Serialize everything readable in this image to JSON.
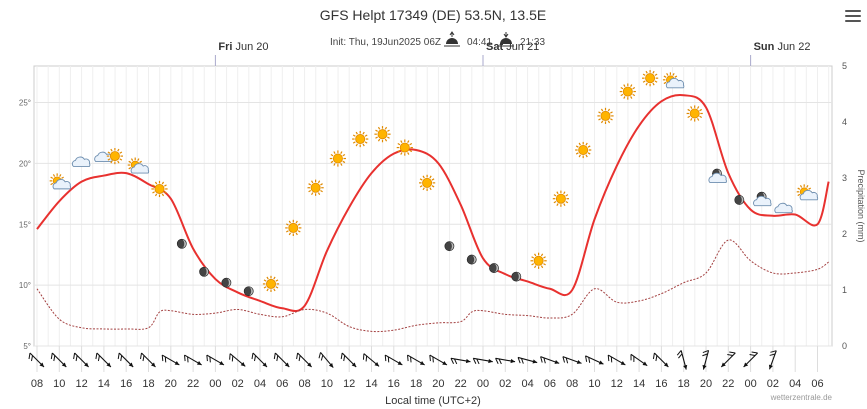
{
  "header": {
    "title": "GFS Helpt 17349 (DE) 53.5N, 13.5E",
    "init": "Init: Thu, 19Jun2025 06Z",
    "sunrise": "04:41",
    "sunset": "21:33"
  },
  "credit": "wetterzentrale.de",
  "menu_icon": "hamburger-menu-icon",
  "day_labels": [
    {
      "day": "Fri",
      "date": "Jun 20",
      "x_hours": 16
    },
    {
      "day": "Sat",
      "date": "Jun 21",
      "x_hours": 40
    },
    {
      "day": "Sun",
      "date": "Jun 22",
      "x_hours": 64
    }
  ],
  "chart_data": {
    "type": "line",
    "title": "GFS Helpt 17349 (DE) 53.5N, 13.5E",
    "xlabel": "Local time (UTC+2)",
    "ylabel": "",
    "y2label": "Precipitation (mm)",
    "ylim": [
      5,
      28
    ],
    "y2lim": [
      0,
      5
    ],
    "yticks": [
      5,
      10,
      15,
      20,
      25
    ],
    "y2ticks": [
      0,
      1,
      2,
      3,
      4,
      5
    ],
    "xticks": [
      "08",
      "10",
      "12",
      "14",
      "16",
      "18",
      "20",
      "22",
      "00",
      "02",
      "04",
      "06",
      "08",
      "10",
      "12",
      "14",
      "16",
      "18",
      "20",
      "22",
      "00",
      "02",
      "04",
      "06",
      "08",
      "10",
      "12",
      "14",
      "16",
      "18",
      "20",
      "22",
      "00",
      "02",
      "04",
      "06"
    ],
    "series": [
      {
        "axis": "temperature",
        "color": "#e8312f",
        "x": [
          0,
          2,
          4,
          6,
          8,
          10,
          12,
          14,
          16,
          18,
          20,
          22,
          24,
          26,
          28,
          30,
          32,
          34,
          36,
          38,
          40,
          42,
          44,
          46,
          48,
          50,
          52,
          54,
          56,
          58,
          60,
          62,
          64,
          66,
          68,
          70,
          71
        ],
        "values": [
          14.6,
          16.9,
          18.5,
          19.0,
          19.2,
          18.3,
          17.1,
          13.0,
          10.5,
          9.4,
          8.7,
          8.1,
          8.3,
          12.8,
          16.4,
          19.2,
          20.8,
          21.1,
          20.0,
          16.6,
          12.2,
          10.9,
          10.3,
          9.7,
          9.6,
          15.4,
          19.8,
          23.1,
          25.1,
          25.6,
          24.6,
          19.2,
          16.2,
          15.7,
          15.8,
          15.0,
          18.5
        ]
      },
      {
        "axis": "dewpoint",
        "color": "#a34040",
        "x": [
          0,
          2,
          4,
          6,
          8,
          10,
          11,
          12,
          14,
          16,
          18,
          20,
          22,
          24,
          26,
          28,
          30,
          32,
          34,
          36,
          38,
          39,
          40,
          42,
          44,
          46,
          48,
          50,
          52,
          54,
          56,
          58,
          60,
          62,
          64,
          66,
          68,
          70,
          71
        ],
        "values": [
          9.7,
          7.2,
          6.5,
          6.4,
          6.4,
          6.5,
          7.8,
          7.9,
          7.6,
          7.7,
          8.0,
          7.6,
          7.4,
          8.0,
          7.7,
          6.6,
          6.2,
          6.3,
          6.7,
          6.9,
          7.0,
          7.8,
          7.9,
          7.6,
          7.5,
          7.3,
          7.6,
          9.7,
          8.6,
          8.7,
          9.3,
          10.2,
          11.0,
          13.7,
          12.0,
          11.0,
          11.0,
          11.3,
          11.9
        ]
      }
    ],
    "weather_icons": [
      {
        "x": 1,
        "y": 18.4,
        "icon": "sun-cloud-icon"
      },
      {
        "x": 3,
        "y": 20.0,
        "icon": "cloud-icon"
      },
      {
        "x": 5,
        "y": 20.4,
        "icon": "cloud-icon"
      },
      {
        "x": 6,
        "y": 20.6,
        "icon": "sun-icon"
      },
      {
        "x": 8,
        "y": 19.7,
        "icon": "sun-cloud-icon"
      },
      {
        "x": 10,
        "y": 17.9,
        "icon": "sun-icon"
      },
      {
        "x": 12,
        "y": 13.4,
        "icon": "moon-icon"
      },
      {
        "x": 14,
        "y": 11.1,
        "icon": "moon-icon"
      },
      {
        "x": 16,
        "y": 10.2,
        "icon": "moon-icon"
      },
      {
        "x": 18,
        "y": 9.5,
        "icon": "moon-icon"
      },
      {
        "x": 20,
        "y": 10.1,
        "icon": "sun-icon"
      },
      {
        "x": 22,
        "y": 14.7,
        "icon": "sun-icon"
      },
      {
        "x": 24,
        "y": 18.0,
        "icon": "sun-icon"
      },
      {
        "x": 26,
        "y": 20.4,
        "icon": "sun-icon"
      },
      {
        "x": 28,
        "y": 22.0,
        "icon": "sun-icon"
      },
      {
        "x": 30,
        "y": 22.4,
        "icon": "sun-icon"
      },
      {
        "x": 32,
        "y": 21.3,
        "icon": "sun-icon"
      },
      {
        "x": 34,
        "y": 18.4,
        "icon": "sun-icon"
      },
      {
        "x": 36,
        "y": 13.2,
        "icon": "moon-icon"
      },
      {
        "x": 38,
        "y": 12.1,
        "icon": "moon-icon"
      },
      {
        "x": 40,
        "y": 11.4,
        "icon": "moon-icon"
      },
      {
        "x": 42,
        "y": 10.7,
        "icon": "moon-icon"
      },
      {
        "x": 44,
        "y": 12.0,
        "icon": "sun-icon"
      },
      {
        "x": 46,
        "y": 17.1,
        "icon": "sun-icon"
      },
      {
        "x": 48,
        "y": 21.1,
        "icon": "sun-icon"
      },
      {
        "x": 50,
        "y": 23.9,
        "icon": "sun-icon"
      },
      {
        "x": 52,
        "y": 25.9,
        "icon": "sun-icon"
      },
      {
        "x": 54,
        "y": 27.0,
        "icon": "sun-icon"
      },
      {
        "x": 56,
        "y": 26.7,
        "icon": "sun-cloud-icon"
      },
      {
        "x": 58,
        "y": 24.1,
        "icon": "sun-icon"
      },
      {
        "x": 60,
        "y": 19.0,
        "icon": "moon-cloud-icon"
      },
      {
        "x": 62,
        "y": 17.0,
        "icon": "moon-icon"
      },
      {
        "x": 64,
        "y": 17.1,
        "icon": "moon-cloud-icon"
      },
      {
        "x": 66,
        "y": 16.2,
        "icon": "cloud-icon"
      },
      {
        "x": 68,
        "y": 17.5,
        "icon": "sun-cloud-icon"
      }
    ],
    "wind_barbs": [
      {
        "x": 0,
        "dir": 315
      },
      {
        "x": 2,
        "dir": 315
      },
      {
        "x": 4,
        "dir": 315
      },
      {
        "x": 6,
        "dir": 315
      },
      {
        "x": 8,
        "dir": 315
      },
      {
        "x": 10,
        "dir": 315
      },
      {
        "x": 12,
        "dir": 300
      },
      {
        "x": 14,
        "dir": 300
      },
      {
        "x": 16,
        "dir": 300
      },
      {
        "x": 18,
        "dir": 310
      },
      {
        "x": 20,
        "dir": 315
      },
      {
        "x": 22,
        "dir": 315
      },
      {
        "x": 24,
        "dir": 315
      },
      {
        "x": 26,
        "dir": 320
      },
      {
        "x": 28,
        "dir": 315
      },
      {
        "x": 30,
        "dir": 310
      },
      {
        "x": 32,
        "dir": 300
      },
      {
        "x": 34,
        "dir": 300
      },
      {
        "x": 36,
        "dir": 300
      },
      {
        "x": 38,
        "dir": 280
      },
      {
        "x": 40,
        "dir": 280
      },
      {
        "x": 42,
        "dir": 280
      },
      {
        "x": 44,
        "dir": 285
      },
      {
        "x": 46,
        "dir": 290
      },
      {
        "x": 48,
        "dir": 290
      },
      {
        "x": 50,
        "dir": 295
      },
      {
        "x": 52,
        "dir": 300
      },
      {
        "x": 54,
        "dir": 305
      },
      {
        "x": 56,
        "dir": 315
      },
      {
        "x": 58,
        "dir": 345
      },
      {
        "x": 60,
        "dir": 15
      },
      {
        "x": 62,
        "dir": 45
      },
      {
        "x": 64,
        "dir": 45
      },
      {
        "x": 66,
        "dir": 20
      }
    ],
    "grid": true,
    "legend": "none"
  }
}
